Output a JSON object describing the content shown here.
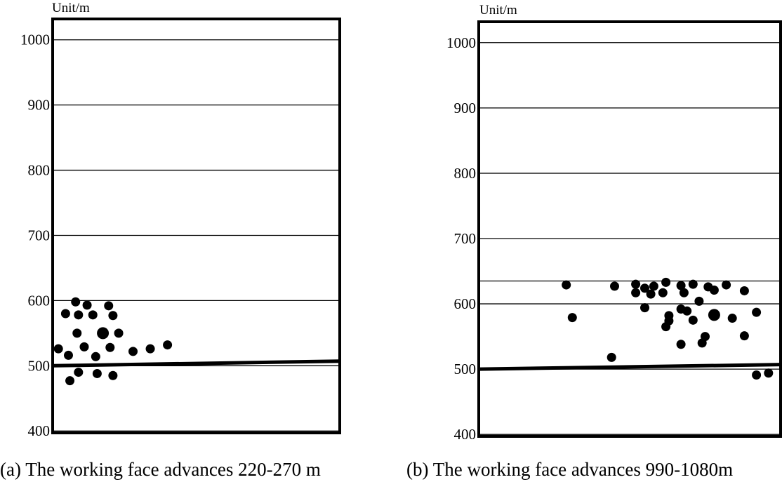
{
  "chart_data": [
    {
      "type": "scatter",
      "caption": "(a) The working face advances 220-270 m",
      "unit_label": "Unit/m",
      "ylim": [
        397,
        1032
      ],
      "y_ticks": [
        1000,
        900,
        800,
        700,
        600,
        500,
        400
      ],
      "y_tick_labels": [
        "1000",
        "900",
        "800",
        "700",
        "600",
        "500",
        "400"
      ],
      "reference_line_level": [
        500,
        507
      ],
      "points": [
        {
          "x": 0.08,
          "y": 598
        },
        {
          "x": 0.12,
          "y": 593
        },
        {
          "x": 0.045,
          "y": 580
        },
        {
          "x": 0.09,
          "y": 578
        },
        {
          "x": 0.14,
          "y": 578
        },
        {
          "x": 0.21,
          "y": 577
        },
        {
          "x": 0.195,
          "y": 592
        },
        {
          "x": 0.085,
          "y": 550
        },
        {
          "x": 0.23,
          "y": 550
        },
        {
          "x": 0.175,
          "y": 550,
          "size": "large"
        },
        {
          "x": 0.02,
          "y": 526
        },
        {
          "x": 0.11,
          "y": 529
        },
        {
          "x": 0.2,
          "y": 528
        },
        {
          "x": 0.28,
          "y": 522
        },
        {
          "x": 0.055,
          "y": 516
        },
        {
          "x": 0.15,
          "y": 514
        },
        {
          "x": 0.34,
          "y": 526
        },
        {
          "x": 0.4,
          "y": 532
        },
        {
          "x": 0.09,
          "y": 490
        },
        {
          "x": 0.155,
          "y": 488
        },
        {
          "x": 0.21,
          "y": 485
        },
        {
          "x": 0.06,
          "y": 477
        }
      ]
    },
    {
      "type": "scatter",
      "caption": "(b) The working face advances 990-1080m",
      "unit_label": "Unit/m",
      "ylim": [
        397,
        1032
      ],
      "y_ticks": [
        1000,
        900,
        800,
        700,
        600,
        500,
        400
      ],
      "y_tick_labels": [
        "1000",
        "900",
        "800",
        "700",
        "600",
        "500",
        "400"
      ],
      "extra_gridline": 635,
      "reference_line_level": [
        500,
        507
      ],
      "points": [
        {
          "x": 0.29,
          "y": 629
        },
        {
          "x": 0.45,
          "y": 627
        },
        {
          "x": 0.52,
          "y": 630
        },
        {
          "x": 0.55,
          "y": 624
        },
        {
          "x": 0.58,
          "y": 627
        },
        {
          "x": 0.62,
          "y": 633
        },
        {
          "x": 0.67,
          "y": 628
        },
        {
          "x": 0.71,
          "y": 630
        },
        {
          "x": 0.76,
          "y": 626
        },
        {
          "x": 0.82,
          "y": 629
        },
        {
          "x": 0.78,
          "y": 621
        },
        {
          "x": 0.88,
          "y": 620
        },
        {
          "x": 0.52,
          "y": 617
        },
        {
          "x": 0.57,
          "y": 615
        },
        {
          "x": 0.61,
          "y": 617
        },
        {
          "x": 0.68,
          "y": 617
        },
        {
          "x": 0.73,
          "y": 604
        },
        {
          "x": 0.31,
          "y": 579
        },
        {
          "x": 0.55,
          "y": 594
        },
        {
          "x": 0.67,
          "y": 592
        },
        {
          "x": 0.69,
          "y": 589
        },
        {
          "x": 0.63,
          "y": 582
        },
        {
          "x": 0.78,
          "y": 583,
          "size": "large"
        },
        {
          "x": 0.92,
          "y": 587
        },
        {
          "x": 0.84,
          "y": 578
        },
        {
          "x": 0.71,
          "y": 575
        },
        {
          "x": 0.63,
          "y": 574
        },
        {
          "x": 0.62,
          "y": 565
        },
        {
          "x": 0.75,
          "y": 550
        },
        {
          "x": 0.88,
          "y": 551
        },
        {
          "x": 0.67,
          "y": 538
        },
        {
          "x": 0.74,
          "y": 540
        },
        {
          "x": 0.44,
          "y": 518
        },
        {
          "x": 0.92,
          "y": 491
        },
        {
          "x": 0.96,
          "y": 494
        }
      ]
    }
  ]
}
